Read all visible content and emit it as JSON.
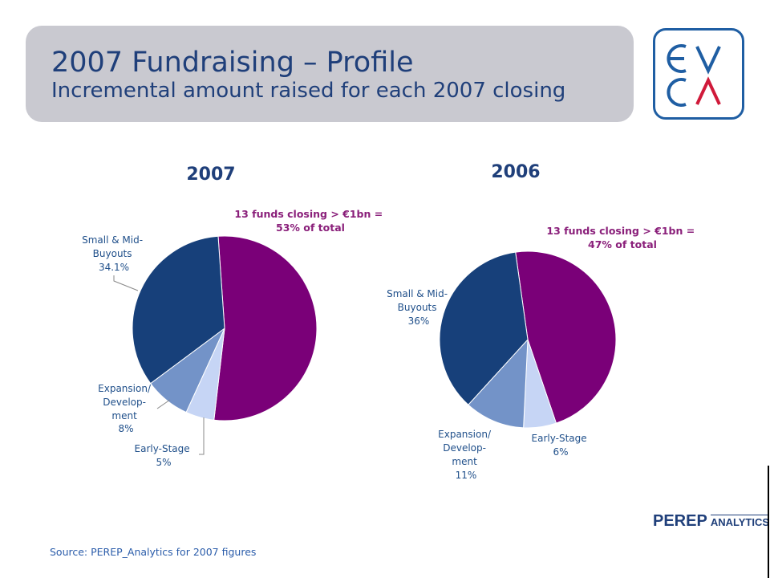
{
  "header": {
    "title": "2007 Fundraising – Profile",
    "subtitle": "Incremental amount raised for each 2007 closing"
  },
  "logo": {
    "text_top": "EV",
    "text_bottom": "CA",
    "colors": {
      "frame": "#1f5ea3",
      "accent": "#d01a3a"
    }
  },
  "colors": {
    "buyouts": "#17407a",
    "expansion": "#7393c8",
    "early_stage": "#c6d5f5",
    "large_funds": "#7a0078",
    "title_box": "#c9c9d0",
    "heading_text": "#1f3f7a",
    "note_text": "#8a1f7a"
  },
  "chart_data": [
    {
      "type": "pie",
      "title": "2007",
      "slices": [
        {
          "label": "13 funds closing > €1bn",
          "value": 53,
          "color_key": "large_funds"
        },
        {
          "label": "Early-Stage",
          "value": 5,
          "color_key": "early_stage"
        },
        {
          "label": "Expansion/ Development",
          "value": 8,
          "color_key": "expansion"
        },
        {
          "label": "Small & Mid-Buyouts",
          "value": 34.1,
          "color_key": "buyouts"
        }
      ],
      "labels": {
        "buyouts": [
          "Small & Mid-",
          "Buyouts",
          "34.1%"
        ],
        "expansion": [
          "Expansion/",
          "Develop-",
          "ment",
          "8%"
        ],
        "early": [
          "Early-Stage",
          "5%"
        ]
      },
      "annotation": [
        "13 funds closing > €1bn =",
        "53% of total"
      ]
    },
    {
      "type": "pie",
      "title": "2006",
      "slices": [
        {
          "label": "13 funds closing > €1bn",
          "value": 47,
          "color_key": "large_funds"
        },
        {
          "label": "Early-Stage",
          "value": 6,
          "color_key": "early_stage"
        },
        {
          "label": "Expansion/ Development",
          "value": 11,
          "color_key": "expansion"
        },
        {
          "label": "Small & Mid-Buyouts",
          "value": 36,
          "color_key": "buyouts"
        }
      ],
      "labels": {
        "buyouts": [
          "Small & Mid-",
          "Buyouts",
          "36%"
        ],
        "expansion": [
          "Expansion/",
          "Develop-",
          "ment",
          "11%"
        ],
        "early": [
          "Early-Stage",
          "6%"
        ]
      },
      "annotation": [
        "13 funds closing > €1bn =",
        "47% of total"
      ]
    }
  ],
  "footer": {
    "source": "Source: PEREP_Analytics  for 2007 figures",
    "brand_main": "PEREP",
    "brand_sub": "ANALYTICS"
  }
}
